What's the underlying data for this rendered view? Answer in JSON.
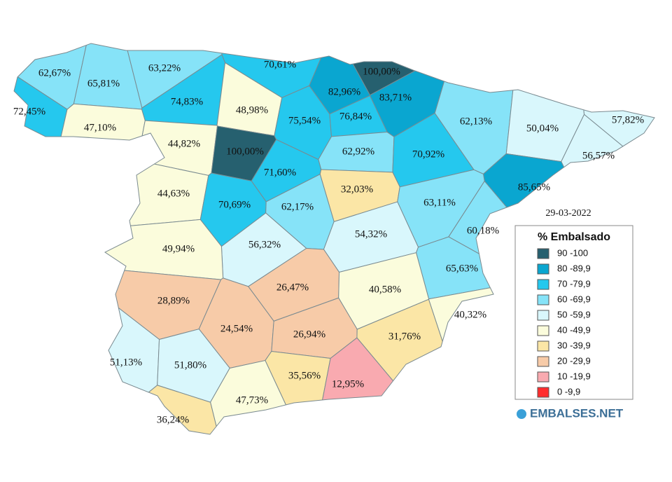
{
  "date": "29-03-2022",
  "legend": {
    "title": "% Embalsado",
    "items": [
      {
        "label": "90 -100",
        "color": "#26606f"
      },
      {
        "label": "80 -89,9",
        "color": "#0aa6d0"
      },
      {
        "label": "70 -79,9",
        "color": "#25c8ee"
      },
      {
        "label": "60 -69,9",
        "color": "#86e3f8"
      },
      {
        "label": "50 -59,9",
        "color": "#d9f7fc"
      },
      {
        "label": "40 -49,9",
        "color": "#fbfcdc"
      },
      {
        "label": "30 -39,9",
        "color": "#fbe6a6"
      },
      {
        "label": "20 -29,9",
        "color": "#f7cba8"
      },
      {
        "label": "10 -19,9",
        "color": "#f9aab0"
      },
      {
        "label": "0 -9,9",
        "color": "#ff2d2d"
      }
    ]
  },
  "regions": [
    {
      "label": "62,67%",
      "color": "#86e3f8"
    },
    {
      "label": "72,45%",
      "color": "#25c8ee"
    },
    {
      "label": "65,81%",
      "color": "#86e3f8"
    },
    {
      "label": "63,22%",
      "color": "#86e3f8"
    },
    {
      "label": "70,61%",
      "color": "#25c8ee"
    },
    {
      "label": "100,00%",
      "color": "#26606f"
    },
    {
      "label": "82,96%",
      "color": "#0aa6d0"
    },
    {
      "label": "83,71%",
      "color": "#0aa6d0"
    },
    {
      "label": "74,83%",
      "color": "#25c8ee"
    },
    {
      "label": "48,98%",
      "color": "#fbfcdc"
    },
    {
      "label": "75,54%",
      "color": "#25c8ee"
    },
    {
      "label": "76,84%",
      "color": "#25c8ee"
    },
    {
      "label": "47,10%",
      "color": "#fbfcdc"
    },
    {
      "label": "62,13%",
      "color": "#86e3f8"
    },
    {
      "label": "50,04%",
      "color": "#d9f7fc"
    },
    {
      "label": "57,82%",
      "color": "#d9f7fc"
    },
    {
      "label": "44,82%",
      "color": "#fbfcdc"
    },
    {
      "label": "100,00%",
      "color": "#26606f"
    },
    {
      "label": "62,92%",
      "color": "#86e3f8"
    },
    {
      "label": "70,92%",
      "color": "#25c8ee"
    },
    {
      "label": "56,57%",
      "color": "#d9f7fc"
    },
    {
      "label": "71,60%",
      "color": "#25c8ee"
    },
    {
      "label": "32,03%",
      "color": "#fbe6a6"
    },
    {
      "label": "85,65%",
      "color": "#0aa6d0"
    },
    {
      "label": "44,63%",
      "color": "#fbfcdc"
    },
    {
      "label": "70,69%",
      "color": "#25c8ee"
    },
    {
      "label": "62,17%",
      "color": "#86e3f8"
    },
    {
      "label": "63,11%",
      "color": "#86e3f8"
    },
    {
      "label": "60,18%",
      "color": "#86e3f8"
    },
    {
      "label": "56,32%",
      "color": "#d9f7fc"
    },
    {
      "label": "54,32%",
      "color": "#d9f7fc"
    },
    {
      "label": "49,94%",
      "color": "#fbfcdc"
    },
    {
      "label": "65,63%",
      "color": "#86e3f8"
    },
    {
      "label": "26,47%",
      "color": "#f7cba8"
    },
    {
      "label": "28,89%",
      "color": "#f7cba8"
    },
    {
      "label": "40,58%",
      "color": "#fbfcdc"
    },
    {
      "label": "40,32%",
      "color": "#fbfcdc"
    },
    {
      "label": "24,54%",
      "color": "#f7cba8"
    },
    {
      "label": "26,94%",
      "color": "#f7cba8"
    },
    {
      "label": "31,76%",
      "color": "#fbe6a6"
    },
    {
      "label": "51,13%",
      "color": "#d9f7fc"
    },
    {
      "label": "51,80%",
      "color": "#d9f7fc"
    },
    {
      "label": "35,56%",
      "color": "#fbe6a6"
    },
    {
      "label": "12,95%",
      "color": "#f9aab0"
    },
    {
      "label": "47,73%",
      "color": "#fbfcdc"
    },
    {
      "label": "36,24%",
      "color": "#fbe6a6"
    }
  ],
  "brand": "EMBALSES.NET"
}
